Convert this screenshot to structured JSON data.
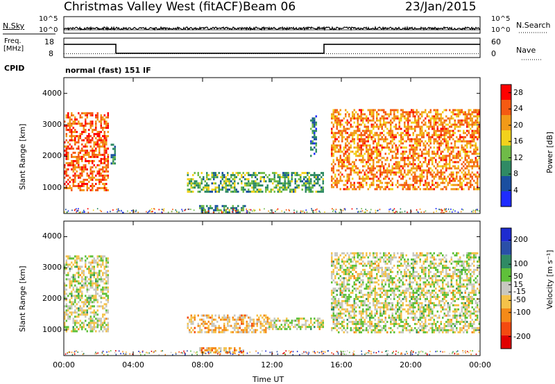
{
  "header": {
    "station_title": "Christmas Valley West (fitACF)",
    "beam_label": "Beam 06",
    "date": "23/Jan/2015"
  },
  "strip_labels": {
    "nsky": "N.Sky",
    "nsky_top": "10^5",
    "nsky_bottom": "10^0",
    "nsearch": "N.Search",
    "nsearch_top": "10^5",
    "nsearch_bottom": "10^0",
    "freq_line1": "Freq.",
    "freq_line2": "[MHz]",
    "freq_top": "18",
    "freq_bottom": "8",
    "nave": "Nave",
    "nave_top": "60",
    "nave_bottom": "0",
    "cpid": "CPID",
    "cpid_value": "normal (fast) 151 IF"
  },
  "colors": {
    "power_scale": [
      "#1e2bff",
      "#1a4fa0",
      "#2f8a64",
      "#6fbb48",
      "#f2d21c",
      "#f29a18",
      "#f55a12",
      "#ff0000"
    ],
    "velocity_scale": [
      "#e00000",
      "#f44a10",
      "#f58a18",
      "#f5c24a",
      "#c8c8c0",
      "#5fc03a",
      "#2f8a64",
      "#2a4fa8",
      "#1e2bd0"
    ]
  },
  "chart_data": [
    {
      "type": "heatmap",
      "name": "power",
      "ylabel": "Slant Range [km]",
      "x_ticks": [
        "00:00",
        "04:00",
        "08:00",
        "12:00",
        "16:00",
        "20:00",
        "00:00"
      ],
      "xlim_hours": [
        0,
        24
      ],
      "y_ticks": [
        1000,
        2000,
        3000,
        4000
      ],
      "ylim": [
        180,
        4500
      ],
      "colorbar": {
        "label": "Power [dB]",
        "ticks": [
          4,
          8,
          12,
          16,
          20,
          24,
          28
        ],
        "range": [
          0,
          30
        ]
      },
      "echo_regions": [
        {
          "t_start": 0.0,
          "t_end": 2.6,
          "r_low": 950,
          "r_high": 3400,
          "mean_value": 24
        },
        {
          "t_start": 2.7,
          "t_end": 3.0,
          "r_low": 1800,
          "r_high": 2400,
          "mean_value": 10
        },
        {
          "t_start": 7.1,
          "t_end": 15.0,
          "r_low": 900,
          "r_high": 1500,
          "mean_value": 12
        },
        {
          "t_start": 14.2,
          "t_end": 14.6,
          "r_low": 2000,
          "r_high": 3300,
          "mean_value": 8
        },
        {
          "t_start": 15.4,
          "t_end": 24.0,
          "r_low": 950,
          "r_high": 3500,
          "mean_value": 22
        },
        {
          "t_start": 7.8,
          "t_end": 10.5,
          "r_low": 250,
          "r_high": 450,
          "mean_value": 10
        }
      ]
    },
    {
      "type": "heatmap",
      "name": "velocity",
      "ylabel": "Slant Range [km]",
      "x_ticks": [
        "00:00",
        "04:00",
        "08:00",
        "12:00",
        "16:00",
        "20:00",
        "00:00"
      ],
      "xlim_hours": [
        0,
        24
      ],
      "xlabel": "Time UT",
      "y_ticks": [
        1000,
        2000,
        3000,
        4000
      ],
      "ylim": [
        180,
        4500
      ],
      "colorbar": {
        "label": "Velocity [m s⁻¹]",
        "ticks": [
          200,
          100,
          50,
          15,
          -15,
          -50,
          -100,
          -200
        ],
        "range": [
          -250,
          250
        ]
      },
      "echo_regions": [
        {
          "t_start": 0.0,
          "t_end": 2.6,
          "r_low": 950,
          "r_high": 3400,
          "mean_value": 0
        },
        {
          "t_start": 7.1,
          "t_end": 11.8,
          "r_low": 900,
          "r_high": 1500,
          "mean_value": -60
        },
        {
          "t_start": 11.8,
          "t_end": 15.0,
          "r_low": 1000,
          "r_high": 1400,
          "mean_value": 0
        },
        {
          "t_start": 15.4,
          "t_end": 24.0,
          "r_low": 950,
          "r_high": 3500,
          "mean_value": 0
        },
        {
          "t_start": 7.8,
          "t_end": 10.5,
          "r_low": 250,
          "r_high": 450,
          "mean_value": -80
        }
      ]
    }
  ],
  "frequency_trace": [
    {
      "t_start": 0.0,
      "t_end": 3.0,
      "freq_mhz": 14.8
    },
    {
      "t_start": 3.0,
      "t_end": 15.0,
      "freq_mhz": 10.2
    },
    {
      "t_start": 15.0,
      "t_end": 24.0,
      "freq_mhz": 14.8
    }
  ],
  "nave_level": 12
}
